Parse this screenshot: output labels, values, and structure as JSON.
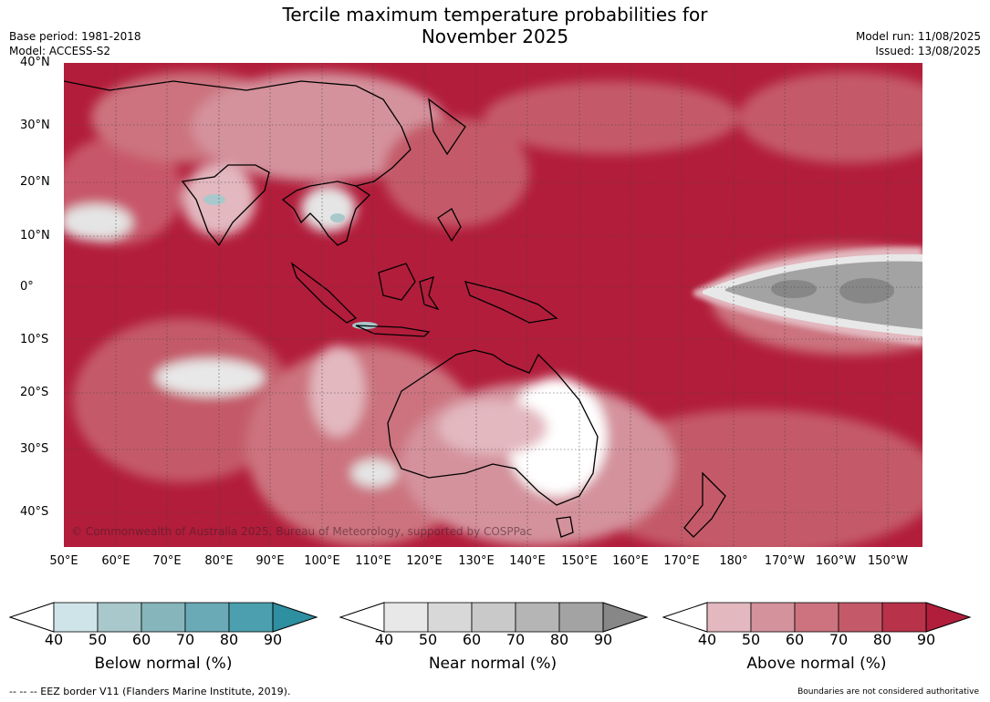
{
  "title_line1": "Tercile maximum temperature probabilities for",
  "title_line2": "November 2025",
  "base_period": "Base period: 1981-2018",
  "model": "Model: ACCESS-S2",
  "model_run": "Model run: 11/08/2025",
  "issued": "Issued: 13/08/2025",
  "lat_labels": [
    "40°N",
    "30°N",
    "20°N",
    "10°N",
    "0°",
    "10°S",
    "20°S",
    "30°S",
    "40°S"
  ],
  "lon_labels": [
    "50°E",
    "60°E",
    "70°E",
    "80°E",
    "90°E",
    "100°E",
    "110°E",
    "120°E",
    "130°E",
    "140°E",
    "150°E",
    "160°E",
    "170°E",
    "180°",
    "170°W",
    "160°W",
    "150°W"
  ],
  "copyright": "© Commonwealth of Australia 2025, Bureau of Meteorology, supported by COSPPac",
  "colorbars": [
    {
      "label": "Below normal (%)",
      "ticks": [
        "40",
        "50",
        "60",
        "70",
        "80",
        "90"
      ],
      "colors": [
        "#cfe4e8",
        "#a9c8cc",
        "#86b5bc",
        "#6aa9b6",
        "#4c9fae",
        "#2e8fa0"
      ]
    },
    {
      "label": "Near normal (%)",
      "ticks": [
        "40",
        "50",
        "60",
        "70",
        "80",
        "90"
      ],
      "colors": [
        "#e8e8e8",
        "#d8d8d8",
        "#c9c9c9",
        "#b5b5b5",
        "#a3a3a3",
        "#878787"
      ]
    },
    {
      "label": "Above normal (%)",
      "ticks": [
        "40",
        "50",
        "60",
        "70",
        "80",
        "90"
      ],
      "colors": [
        "#e3b8bf",
        "#d4929c",
        "#cc737f",
        "#c45a69",
        "#b8324a",
        "#b01e3c"
      ]
    }
  ],
  "footer_left": "--  --  -- EEZ border V11 (Flanders Marine Institute, 2019).",
  "footer_right": "Boundaries are not considered authoritative"
}
